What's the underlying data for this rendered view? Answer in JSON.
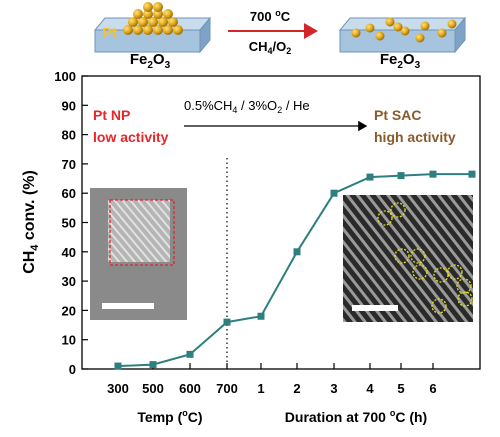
{
  "schematic": {
    "left_metal": "Pt",
    "left_support": "Fe2O3",
    "right_support": "Fe2O3",
    "arrow_top_label": "700 °C",
    "arrow_bottom_label": "CH4/O2"
  },
  "annotations": {
    "left_label_line1": "Pt NP",
    "left_label_line2": "low activity",
    "right_label_line1": "Pt SAC",
    "right_label_line2": "high activity",
    "gas_label": "0.5%CH4 / 3%O2 / He"
  },
  "colors": {
    "series": "#2f7f7f",
    "left_label": "#e8262a",
    "right_label": "#8b5a2b",
    "arrow": "#d4262a",
    "support_top": "#a7c4de",
    "support_side": "#6f95bb",
    "nanoparticle": "#e0a81c",
    "inset_box": "#e0262a",
    "inset_circles": "#e8e020"
  },
  "chart_data": {
    "type": "line",
    "categories": [
      "300",
      "500",
      "600",
      "700",
      "1",
      "2",
      "3",
      "4",
      "5",
      "6"
    ],
    "values": [
      1,
      1.5,
      5,
      16,
      18,
      40,
      60,
      65.5,
      66,
      66.5
    ],
    "extra_points": [
      {
        "after": "6",
        "value": 66.5
      }
    ],
    "ylabel": "CH4 conv. (%)",
    "xlabel_left": "Temp (°C)",
    "xlabel_right": "Duration at 700 °C (h)",
    "ylim": [
      0,
      100
    ],
    "yticks": [
      0,
      10,
      20,
      30,
      40,
      50,
      60,
      70,
      80,
      90,
      100
    ],
    "divider_at": "700"
  }
}
